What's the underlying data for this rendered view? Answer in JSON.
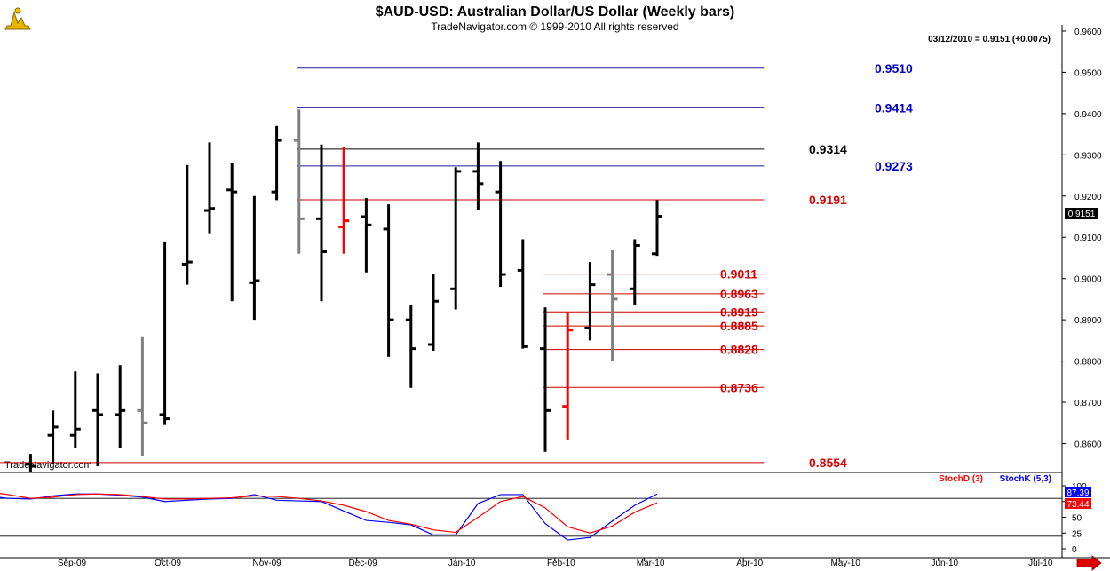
{
  "header": {
    "title": "$AUD-USD:  Australian Dollar/US Dollar  (Weekly bars)",
    "subtitle": "TradeNavigator.com © 1999-2010 All rights reserved",
    "quote": "03/12/2010 = 0.9151 (+0.0075)",
    "watermark": "TradeNavigator.com",
    "last_price": "0.9151"
  },
  "indicators": {
    "stochd_label": "StochD (3)",
    "stochk_label": "StochK (5,3)",
    "stochk_value": "87.39",
    "stochd_value": "73.44",
    "stochd_color": "#ff0000",
    "stochk_color": "#0000ff"
  },
  "chart_data": [
    {
      "type": "ohlc",
      "title": "$AUD-USD:  Australian Dollar/US Dollar  (Weekly bars)",
      "y_ticks": [
        "0.9600",
        "0.9500",
        "0.9400",
        "0.9300",
        "0.9200",
        "0.9100",
        "0.9000",
        "0.8900",
        "0.8800",
        "0.8700",
        "0.8600"
      ],
      "ylim": [
        0.853,
        0.9615
      ],
      "x_ticks": [
        "Sep-09",
        "Oct-09",
        "Nov-09",
        "Dec-09",
        "Jan-10",
        "Feb-10",
        "Mar-10",
        "Apr-10",
        "May-10",
        "Jun-10",
        "Jul-10"
      ],
      "bars": [
        {
          "date": "2009-08-21",
          "open": 0.855,
          "high": 0.8575,
          "low": 0.853,
          "close": 0.8545,
          "color": "black"
        },
        {
          "date": "2009-08-28",
          "open": 0.862,
          "high": 0.868,
          "low": 0.855,
          "close": 0.864,
          "color": "black"
        },
        {
          "date": "2009-09-04",
          "open": 0.862,
          "high": 0.8775,
          "low": 0.859,
          "close": 0.8635,
          "color": "black"
        },
        {
          "date": "2009-09-11",
          "open": 0.868,
          "high": 0.877,
          "low": 0.8545,
          "close": 0.867,
          "color": "black"
        },
        {
          "date": "2009-09-18",
          "open": 0.867,
          "high": 0.879,
          "low": 0.859,
          "close": 0.868,
          "color": "black"
        },
        {
          "date": "2009-09-25",
          "open": 0.868,
          "high": 0.886,
          "low": 0.857,
          "close": 0.865,
          "color": "gray"
        },
        {
          "date": "2009-10-02",
          "open": 0.867,
          "high": 0.909,
          "low": 0.8645,
          "close": 0.866,
          "color": "black"
        },
        {
          "date": "2009-10-09",
          "open": 0.9035,
          "high": 0.9275,
          "low": 0.8985,
          "close": 0.904,
          "color": "black"
        },
        {
          "date": "2009-10-16",
          "open": 0.9165,
          "high": 0.933,
          "low": 0.911,
          "close": 0.917,
          "color": "black"
        },
        {
          "date": "2009-10-23",
          "open": 0.9215,
          "high": 0.928,
          "low": 0.8945,
          "close": 0.921,
          "color": "black"
        },
        {
          "date": "2009-10-30",
          "open": 0.899,
          "high": 0.92,
          "low": 0.89,
          "close": 0.8995,
          "color": "black"
        },
        {
          "date": "2009-11-06",
          "open": 0.921,
          "high": 0.937,
          "low": 0.919,
          "close": 0.9335,
          "color": "black"
        },
        {
          "date": "2009-11-13",
          "open": 0.9335,
          "high": 0.941,
          "low": 0.906,
          "close": 0.9145,
          "color": "gray"
        },
        {
          "date": "2009-11-20",
          "open": 0.9145,
          "high": 0.9325,
          "low": 0.8945,
          "close": 0.9065,
          "color": "black"
        },
        {
          "date": "2009-11-27",
          "open": 0.9125,
          "high": 0.932,
          "low": 0.906,
          "close": 0.914,
          "color": "red"
        },
        {
          "date": "2009-12-04",
          "open": 0.915,
          "high": 0.9195,
          "low": 0.9015,
          "close": 0.913,
          "color": "black"
        },
        {
          "date": "2009-12-11",
          "open": 0.912,
          "high": 0.918,
          "low": 0.881,
          "close": 0.89,
          "color": "black"
        },
        {
          "date": "2009-12-18",
          "open": 0.89,
          "high": 0.8935,
          "low": 0.8735,
          "close": 0.883,
          "color": "black"
        },
        {
          "date": "2009-12-25",
          "open": 0.884,
          "high": 0.901,
          "low": 0.8825,
          "close": 0.8945,
          "color": "black"
        },
        {
          "date": "2010-01-01",
          "open": 0.8975,
          "high": 0.927,
          "low": 0.8925,
          "close": 0.926,
          "color": "black"
        },
        {
          "date": "2010-01-08",
          "open": 0.926,
          "high": 0.933,
          "low": 0.9165,
          "close": 0.923,
          "color": "black"
        },
        {
          "date": "2010-01-15",
          "open": 0.921,
          "high": 0.9285,
          "low": 0.898,
          "close": 0.901,
          "color": "black"
        },
        {
          "date": "2010-01-22",
          "open": 0.902,
          "high": 0.9095,
          "low": 0.883,
          "close": 0.8835,
          "color": "black"
        },
        {
          "date": "2010-01-29",
          "open": 0.883,
          "high": 0.893,
          "low": 0.858,
          "close": 0.868,
          "color": "black"
        },
        {
          "date": "2010-02-05",
          "open": 0.869,
          "high": 0.892,
          "low": 0.861,
          "close": 0.8875,
          "color": "red"
        },
        {
          "date": "2010-02-12",
          "open": 0.888,
          "high": 0.904,
          "low": 0.885,
          "close": 0.8985,
          "color": "black"
        },
        {
          "date": "2010-02-19",
          "open": 0.901,
          "high": 0.907,
          "low": 0.88,
          "close": 0.895,
          "color": "gray"
        },
        {
          "date": "2010-02-26",
          "open": 0.8975,
          "high": 0.9095,
          "low": 0.8935,
          "close": 0.908,
          "color": "black"
        },
        {
          "date": "2010-03-05",
          "open": 0.906,
          "high": 0.919,
          "low": 0.9055,
          "close": 0.9151,
          "color": "black"
        }
      ],
      "levels": [
        {
          "label": "0.9510",
          "value": 0.951,
          "color": "#1f1f9f",
          "start": "2009-11-13"
        },
        {
          "label": "0.9414",
          "value": 0.9414,
          "color": "#1f1f9f",
          "start": "2009-11-13"
        },
        {
          "label": "0.9314",
          "value": 0.9314,
          "color": "#000000",
          "start": "2009-11-13"
        },
        {
          "label": "0.9273",
          "value": 0.9273,
          "color": "#1f1f9f",
          "start": "2009-11-13"
        },
        {
          "label": "0.9191",
          "value": 0.9191,
          "color": "#cc0000",
          "start": "2009-11-13"
        },
        {
          "label": "0.9011",
          "value": 0.9011,
          "color": "#cc0000",
          "start": "2010-01-29"
        },
        {
          "label": "0.8963",
          "value": 0.8963,
          "color": "#cc0000",
          "start": "2010-01-29"
        },
        {
          "label": "0.8919",
          "value": 0.8919,
          "color": "#cc0000",
          "start": "2010-01-29"
        },
        {
          "label": "0.8885",
          "value": 0.8885,
          "color": "#cc0000",
          "start": "2010-01-29"
        },
        {
          "label": "0.8828",
          "value": 0.8828,
          "color": "#cc0000",
          "start": "2010-01-29"
        },
        {
          "label": "0.8736",
          "value": 0.8736,
          "color": "#cc0000",
          "start": "2010-01-29"
        },
        {
          "label": "0.8554",
          "value": 0.8554,
          "color": "#cc0000",
          "start": "2009-08-07"
        }
      ],
      "level_label_colors": {
        "#1f1f9f": "#0000cc",
        "#000000": "#000000",
        "#cc0000": "#dd0000"
      }
    },
    {
      "type": "line",
      "y_ticks": [
        "100",
        "75",
        "50",
        "25",
        "0"
      ],
      "ylim": [
        0,
        100
      ],
      "x": [
        "2009-08-07",
        "2009-08-14",
        "2009-08-21",
        "2009-08-28",
        "2009-09-04",
        "2009-09-11",
        "2009-09-18",
        "2009-09-25",
        "2009-10-02",
        "2009-10-09",
        "2009-10-16",
        "2009-10-23",
        "2009-10-30",
        "2009-11-06",
        "2009-11-13",
        "2009-11-20",
        "2009-11-27",
        "2009-12-04",
        "2009-12-11",
        "2009-12-18",
        "2009-12-25",
        "2010-01-01",
        "2010-01-08",
        "2010-01-15",
        "2010-01-22",
        "2010-01-29",
        "2010-02-05",
        "2010-02-12",
        "2010-02-19",
        "2010-02-26",
        "2010-03-05"
      ],
      "series": [
        {
          "name": "StochK (5,3)",
          "color": "#0000ff",
          "values": [
            84,
            80,
            79,
            84,
            87,
            87,
            85,
            82,
            75,
            77,
            79,
            80,
            86,
            77,
            76,
            75,
            60,
            45,
            42,
            38,
            22,
            22,
            72,
            86,
            86,
            40,
            14,
            18,
            44,
            69,
            87
          ]
        },
        {
          "name": "StochD (3)",
          "color": "#ff0000",
          "values": [
            91,
            86,
            80,
            82,
            86,
            87,
            86,
            83,
            79,
            79,
            80,
            81,
            84,
            83,
            80,
            76,
            69,
            59,
            45,
            39,
            30,
            26,
            50,
            75,
            83,
            65,
            35,
            25,
            36,
            58,
            73
          ]
        }
      ],
      "hlines": [
        80,
        20
      ]
    }
  ]
}
